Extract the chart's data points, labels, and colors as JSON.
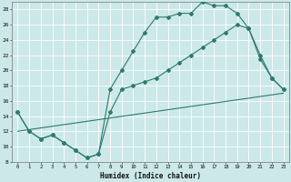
{
  "xlabel": "Humidex (Indice chaleur)",
  "background_color": "#cce8e8",
  "grid_color": "#ffffff",
  "line_color": "#2d7a6e",
  "xlim": [
    -0.5,
    23.5
  ],
  "ylim": [
    8,
    29
  ],
  "xticks": [
    0,
    1,
    2,
    3,
    4,
    5,
    6,
    7,
    8,
    9,
    10,
    11,
    12,
    13,
    14,
    15,
    16,
    17,
    18,
    19,
    20,
    21,
    22,
    23
  ],
  "yticks": [
    8,
    10,
    12,
    14,
    16,
    18,
    20,
    22,
    24,
    26,
    28
  ],
  "line1_x": [
    0,
    1,
    2,
    3,
    4,
    5,
    6,
    7,
    8,
    9,
    10,
    11,
    12,
    13,
    14,
    15,
    16,
    17,
    18,
    19,
    20,
    21,
    22,
    23
  ],
  "line1_y": [
    14.5,
    12,
    11,
    11.5,
    10.5,
    9.5,
    8.5,
    9,
    17.5,
    20,
    22.5,
    25,
    27,
    27,
    27.5,
    27.5,
    29,
    28.5,
    28.5,
    27.5,
    25.5,
    21.5,
    19,
    17.5
  ],
  "line2_x": [
    0,
    1,
    2,
    3,
    4,
    5,
    6,
    7,
    8,
    9,
    10,
    11,
    12,
    13,
    14,
    15,
    16,
    17,
    18,
    19,
    20,
    21,
    22,
    23
  ],
  "line2_y": [
    14.5,
    12,
    11,
    11.5,
    10.5,
    9.5,
    8.5,
    9,
    14.5,
    17.5,
    18,
    18.5,
    19,
    20,
    21,
    22,
    23,
    24,
    25,
    26,
    25.5,
    22,
    19,
    17.5
  ],
  "line3_x": [
    0,
    23
  ],
  "line3_y": [
    12,
    17
  ],
  "marker": "D",
  "marker_size": 2.0,
  "line_width": 0.8
}
